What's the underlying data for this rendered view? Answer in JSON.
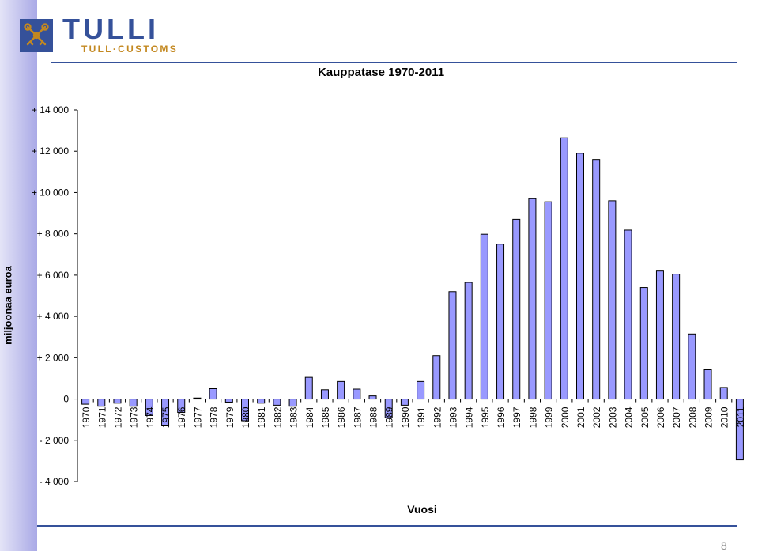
{
  "header": {
    "logo_title": "TULLI",
    "logo_subtitle": "TULL·CUSTOMS",
    "logo_icon": "crossed-keys-emblem-icon"
  },
  "footer": {
    "slide_number": "8"
  },
  "colors": {
    "brand_blue": "#35519a",
    "brand_gold": "#c38820",
    "bar_fill": "#9999ff",
    "band": "#a9a9e6"
  },
  "chart_data": {
    "type": "bar",
    "title": "Kauppatase 1970-2011",
    "xlabel": "Vuosi",
    "ylabel": "miljoonaa euroa",
    "ylim": [
      -4000,
      14000
    ],
    "yticks": [
      14000,
      12000,
      10000,
      8000,
      6000,
      4000,
      2000,
      0,
      -2000,
      -4000
    ],
    "ytick_labels": [
      "+ 14 000",
      "+ 12 000",
      "+ 10 000",
      "+ 8 000",
      "+ 6 000",
      "+ 4 000",
      "+ 2 000",
      "+ 0",
      "- 2 000",
      "- 4 000"
    ],
    "grid": false,
    "categories": [
      "1970",
      "1971",
      "1972",
      "1973",
      "1974",
      "1975",
      "1976",
      "1977",
      "1978",
      "1979",
      "1980",
      "1981",
      "1982",
      "1983",
      "1984",
      "1985",
      "1986",
      "1987",
      "1988",
      "1989",
      "1990",
      "1991",
      "1992",
      "1993",
      "1994",
      "1995",
      "1996",
      "1997",
      "1998",
      "1999",
      "2000",
      "2001",
      "2002",
      "2003",
      "2004",
      "2005",
      "2006",
      "2007",
      "2008",
      "2009",
      "2010",
      "2011"
    ],
    "values": [
      -250,
      -350,
      -200,
      -350,
      -800,
      -1300,
      -650,
      50,
      500,
      -150,
      -1050,
      -200,
      -300,
      -350,
      1050,
      450,
      850,
      480,
      150,
      -900,
      -300,
      850,
      2100,
      5200,
      5650,
      7980,
      7500,
      8700,
      9700,
      9550,
      12650,
      11900,
      11600,
      9600,
      8180,
      5400,
      6200,
      6050,
      3150,
      1420,
      560,
      -2950
    ]
  }
}
